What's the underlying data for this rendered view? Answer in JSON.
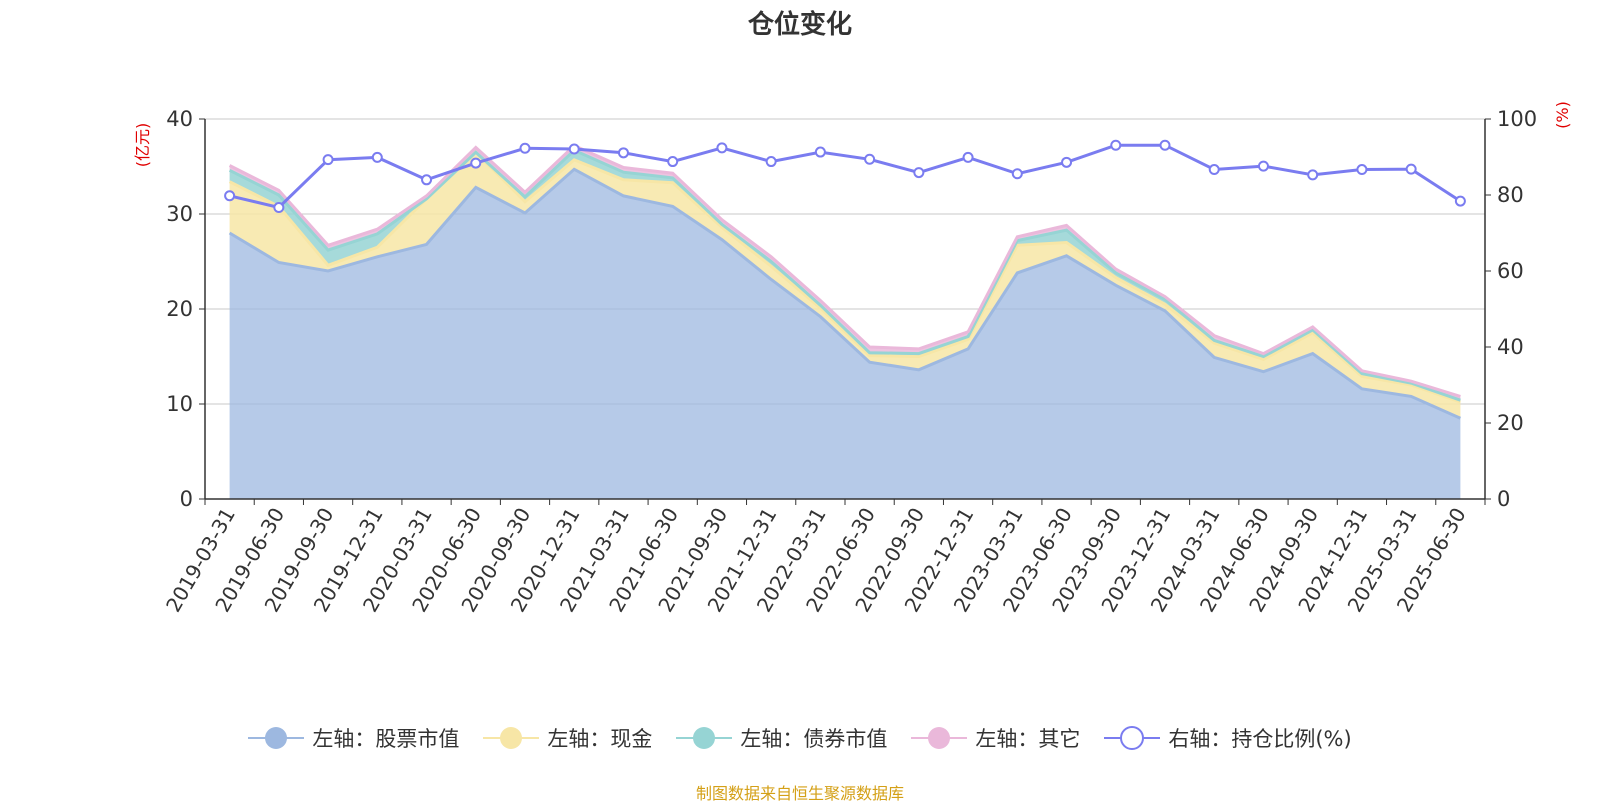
{
  "chart_data": {
    "type": "area",
    "title": "仓位变化",
    "left_axis_unit": "亿元",
    "right_axis_unit": "%",
    "ylim_left": [
      0,
      40
    ],
    "ylim_right": [
      0,
      100
    ],
    "yticks_left": [
      "0",
      "10",
      "20",
      "30",
      "40"
    ],
    "yticks_right": [
      "0",
      "20",
      "40",
      "60",
      "80",
      "100"
    ],
    "grid": true,
    "legend_position": "bottom",
    "categories": [
      "2019-03-31",
      "2019-06-30",
      "2019-09-30",
      "2019-12-31",
      "2020-03-31",
      "2020-06-30",
      "2020-09-30",
      "2020-12-31",
      "2021-03-31",
      "2021-06-30",
      "2021-09-30",
      "2021-12-31",
      "2022-03-31",
      "2022-06-30",
      "2022-09-30",
      "2022-12-31",
      "2023-03-31",
      "2023-06-30",
      "2023-09-30",
      "2023-12-31",
      "2024-03-31",
      "2024-06-30",
      "2024-09-30",
      "2024-12-31",
      "2025-03-31",
      "2025-06-30"
    ],
    "series": [
      {
        "name": "左轴：股票市值",
        "axis": "left",
        "color": "#9db8e0",
        "values": [
          28.0,
          24.9,
          24.0,
          25.5,
          26.8,
          32.8,
          30.1,
          34.7,
          31.9,
          30.8,
          27.3,
          23.1,
          19.2,
          14.4,
          13.6,
          15.8,
          23.8,
          25.6,
          22.5,
          19.8,
          14.9,
          13.4,
          15.3,
          11.6,
          10.8,
          8.5
        ]
      },
      {
        "name": "左轴：现金",
        "axis": "left",
        "color": "#f7e6a6",
        "values": [
          5.4,
          5.9,
          0.6,
          1.0,
          4.8,
          3.7,
          1.2,
          1.0,
          1.7,
          2.5,
          1.3,
          1.4,
          0.9,
          0.7,
          1.4,
          1.0,
          2.9,
          1.4,
          0.8,
          0.7,
          1.5,
          1.3,
          2.2,
          1.3,
          1.2,
          1.7
        ]
      },
      {
        "name": "左轴：债券市值",
        "axis": "left",
        "color": "#96d4d4",
        "values": [
          1.2,
          1.2,
          1.6,
          1.4,
          0.0,
          0.0,
          0.5,
          1.0,
          0.8,
          0.5,
          0.3,
          0.5,
          0.3,
          0.3,
          0.3,
          0.3,
          0.5,
          1.3,
          0.5,
          0.5,
          0.3,
          0.3,
          0.3,
          0.3,
          0.2,
          0.2
        ]
      },
      {
        "name": "左轴：其它",
        "axis": "left",
        "color": "#eab8da",
        "values": [
          0.5,
          0.5,
          0.5,
          0.5,
          0.3,
          0.5,
          0.5,
          0.5,
          0.5,
          0.5,
          0.5,
          0.5,
          0.5,
          0.6,
          0.5,
          0.5,
          0.4,
          0.5,
          0.4,
          0.3,
          0.5,
          0.3,
          0.3,
          0.3,
          0.2,
          0.4
        ]
      },
      {
        "name": "右轴：持仓比例(%)",
        "axis": "right",
        "color": "#7a7cf0",
        "values": [
          79.8,
          76.7,
          89.3,
          89.9,
          84.0,
          88.4,
          92.3,
          92.1,
          91.1,
          88.8,
          92.4,
          88.8,
          91.3,
          89.4,
          85.9,
          89.9,
          85.6,
          88.6,
          93.1,
          93.1,
          86.7,
          87.6,
          85.3,
          86.7,
          86.8,
          78.4
        ]
      }
    ],
    "source_note": "制图数据来自恒生聚源数据库"
  }
}
